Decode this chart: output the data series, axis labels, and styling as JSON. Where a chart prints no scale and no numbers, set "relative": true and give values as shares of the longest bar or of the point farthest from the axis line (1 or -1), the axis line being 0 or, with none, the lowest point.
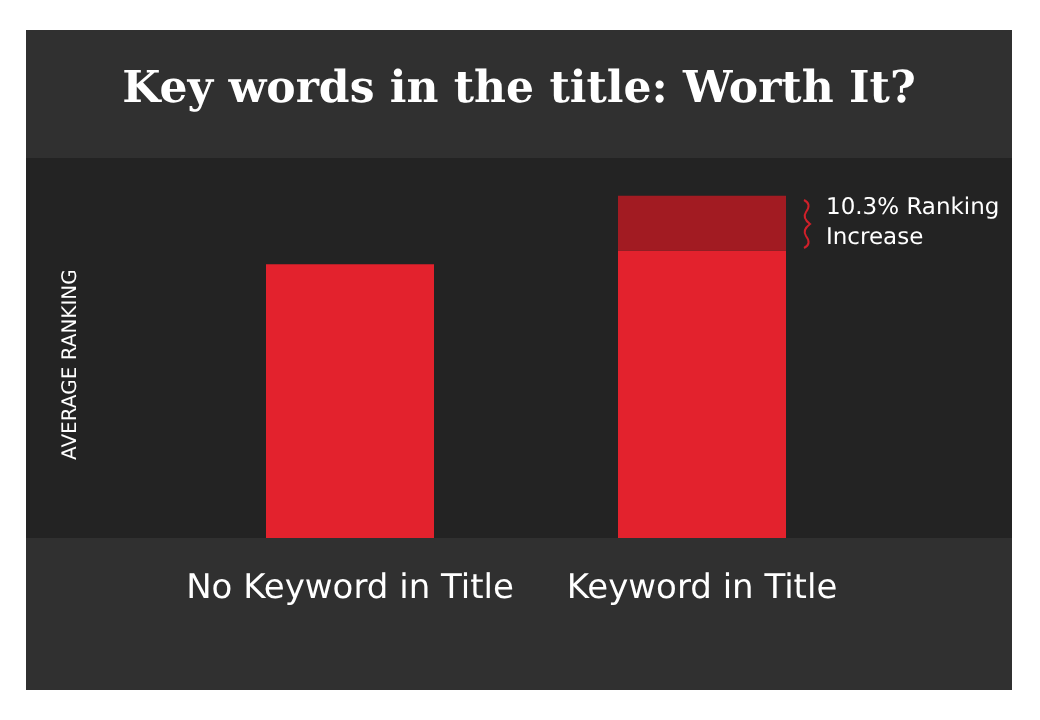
{
  "chart_data": {
    "type": "bar",
    "title": "Key words in the title: Worth It?",
    "ylabel": "AVERAGE RANKING",
    "categories": [
      "No Keyword in Title",
      "Keyword in Title"
    ],
    "stacked": true,
    "relative": true,
    "series": [
      {
        "color": "#e3222d",
        "values": [
          0.8,
          0.84
        ]
      },
      {
        "color": "#a21b22",
        "values": [
          null,
          0.16
        ]
      }
    ],
    "annotations": [
      "10.3% Ranking Increase"
    ]
  }
}
